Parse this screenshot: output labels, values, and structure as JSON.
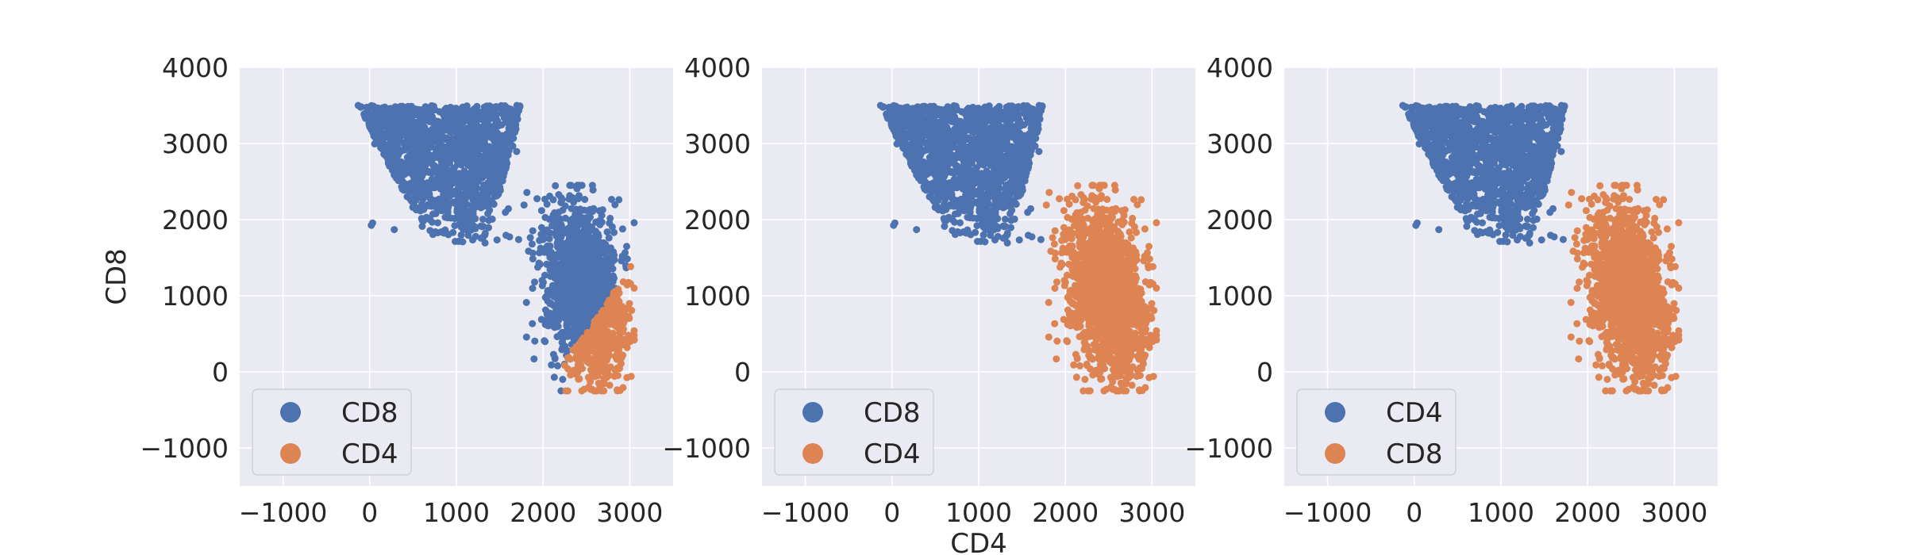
{
  "chart_data": [
    {
      "type": "scatter",
      "title": "",
      "xlabel": "",
      "ylabel": "CD8",
      "xlim": [
        -1500,
        3500
      ],
      "ylim": [
        -1500,
        4000
      ],
      "xticks": [
        -1000,
        0,
        1000,
        2000,
        3000
      ],
      "yticks": [
        -1000,
        0,
        1000,
        2000,
        3000,
        4000
      ],
      "xtick_labels": [
        "−1000",
        "0",
        "1000",
        "2000",
        "3000"
      ],
      "ytick_labels": [
        "−1000",
        "0",
        "1000",
        "2000",
        "3000",
        "4000"
      ],
      "grid": true,
      "legend_position": "lower-left",
      "series": [
        {
          "name": "CD8",
          "color": "#4c72b0",
          "regions": [
            {
              "x_range": [
                -150,
                1800
              ],
              "y_range": [
                1680,
                3550
              ],
              "description": "dense cluster"
            },
            {
              "x_range": [
                1750,
                2950
              ],
              "y_range": [
                100,
                2450
              ],
              "description": "upper part of lower-right cluster"
            }
          ]
        },
        {
          "name": "CD4",
          "color": "#dd8452",
          "regions": [
            {
              "x_range": [
                2300,
                3050
              ],
              "y_range": [
                -250,
                1300
              ],
              "description": "bottom-right wedge of lower-right cluster"
            }
          ]
        }
      ]
    },
    {
      "type": "scatter",
      "title": "",
      "xlabel": "CD4",
      "ylabel": "",
      "xlim": [
        -1500,
        3500
      ],
      "ylim": [
        -1500,
        4000
      ],
      "xticks": [
        -1000,
        0,
        1000,
        2000,
        3000
      ],
      "yticks": [
        -1000,
        0,
        1000,
        2000,
        3000,
        4000
      ],
      "xtick_labels": [
        "−1000",
        "0",
        "1000",
        "2000",
        "3000"
      ],
      "ytick_labels": [
        "−1000",
        "0",
        "1000",
        "2000",
        "3000",
        "4000"
      ],
      "grid": true,
      "legend_position": "lower-left",
      "series": [
        {
          "name": "CD8",
          "color": "#4c72b0",
          "regions": [
            {
              "x_range": [
                -150,
                1800
              ],
              "y_range": [
                1680,
                3550
              ],
              "description": "upper-left cluster"
            }
          ]
        },
        {
          "name": "CD4",
          "color": "#dd8452",
          "regions": [
            {
              "x_range": [
                1750,
                3050
              ],
              "y_range": [
                -250,
                2450
              ],
              "description": "lower-right cluster"
            }
          ]
        }
      ]
    },
    {
      "type": "scatter",
      "title": "",
      "xlabel": "",
      "ylabel": "",
      "xlim": [
        -1500,
        3500
      ],
      "ylim": [
        -1500,
        4000
      ],
      "xticks": [
        -1000,
        0,
        1000,
        2000,
        3000
      ],
      "yticks": [
        -1000,
        0,
        1000,
        2000,
        3000,
        4000
      ],
      "xtick_labels": [
        "−1000",
        "0",
        "1000",
        "2000",
        "3000"
      ],
      "ytick_labels": [
        "−1000",
        "0",
        "1000",
        "2000",
        "3000",
        "4000"
      ],
      "grid": true,
      "legend_position": "lower-left",
      "series": [
        {
          "name": "CD4",
          "color": "#4c72b0",
          "regions": [
            {
              "x_range": [
                -150,
                1800
              ],
              "y_range": [
                1680,
                3550
              ],
              "description": "upper-left cluster"
            }
          ]
        },
        {
          "name": "CD8",
          "color": "#dd8452",
          "regions": [
            {
              "x_range": [
                1750,
                3050
              ],
              "y_range": [
                -250,
                2450
              ],
              "description": "lower-right cluster"
            }
          ]
        }
      ]
    }
  ]
}
